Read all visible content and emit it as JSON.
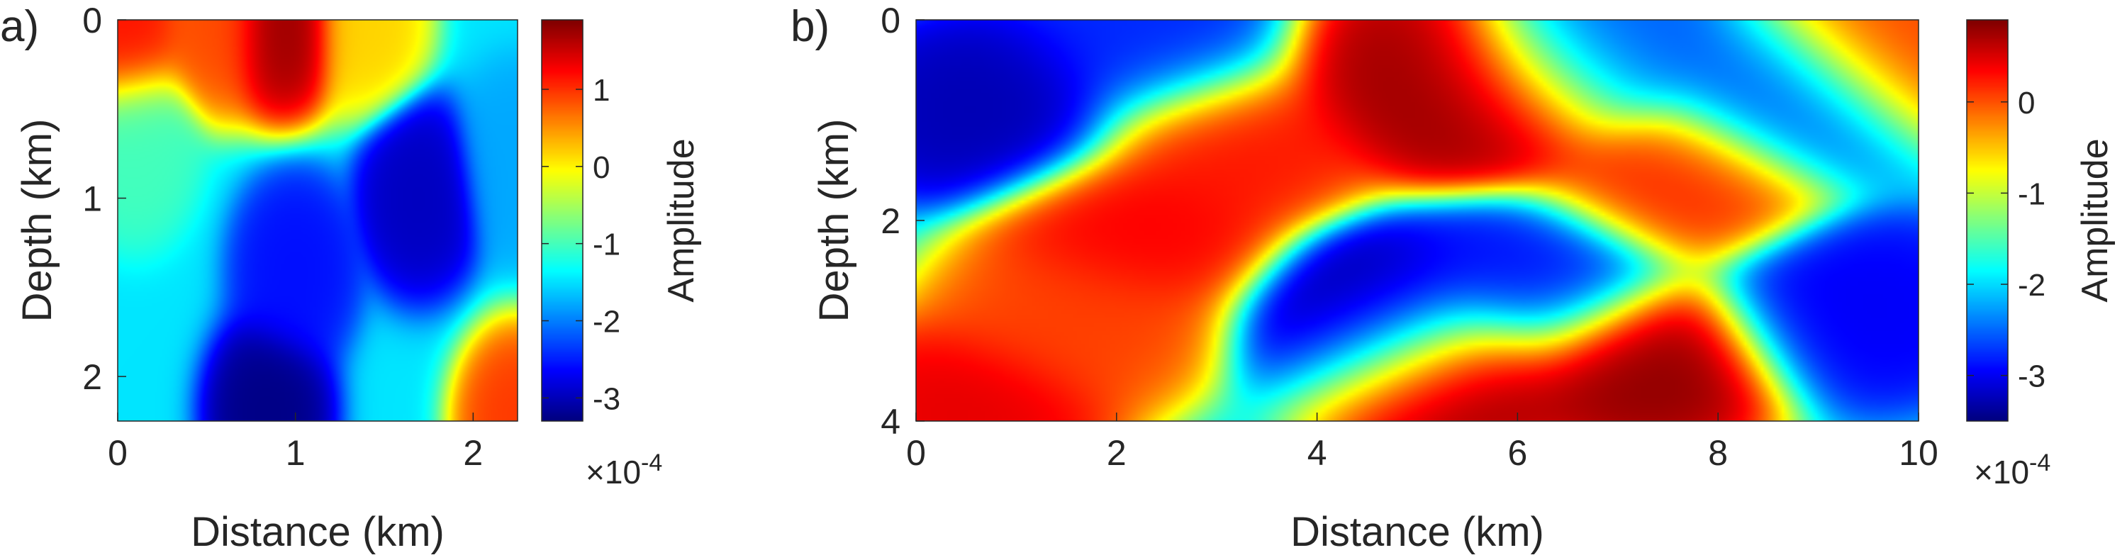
{
  "chart_data": [
    {
      "type": "heatmap",
      "panel_label": "a)",
      "xlabel": "Distance (km)",
      "ylabel": "Depth (km)",
      "xlim": [
        0,
        2.25
      ],
      "ylim": [
        0,
        2.25
      ],
      "y_reversed": true,
      "xticks": [
        0,
        1,
        2
      ],
      "yticks": [
        0,
        1,
        2
      ],
      "colorbar": {
        "label": "Amplitude",
        "exponent_label": "×10",
        "exponent_power": "-4",
        "range": [
          -3.3,
          1.9
        ],
        "ticks": [
          -3,
          -2,
          -1,
          0,
          1
        ],
        "colormap": "jet"
      },
      "features": [
        {
          "x": 0.93,
          "y": 0.02,
          "value": 1.8
        },
        {
          "x": 0.55,
          "y": 0.0,
          "value": 0.9
        },
        {
          "x": 0.05,
          "y": 0.05,
          "value": 1.2
        },
        {
          "x": 0.1,
          "y": 0.7,
          "value": -1.0
        },
        {
          "x": 0.85,
          "y": 2.2,
          "value": -3.3
        },
        {
          "x": 1.7,
          "y": 1.0,
          "value": -3.0
        },
        {
          "x": 1.0,
          "y": 1.4,
          "value": -2.6
        },
        {
          "x": 2.25,
          "y": 2.25,
          "value": 1.0
        },
        {
          "x": 1.4,
          "y": 0.0,
          "value": 0.2
        },
        {
          "x": 2.25,
          "y": 0.8,
          "value": -1.8
        }
      ]
    },
    {
      "type": "heatmap",
      "panel_label": "b)",
      "xlabel": "Distance (km)",
      "ylabel": "Depth (km)",
      "xlim": [
        0,
        10
      ],
      "ylim": [
        0,
        4
      ],
      "y_reversed": true,
      "xticks": [
        0,
        2,
        4,
        6,
        8,
        10
      ],
      "yticks": [
        0,
        2,
        4
      ],
      "colorbar": {
        "label": "Amplitude",
        "exponent_label": "×10",
        "exponent_power": "-4",
        "range": [
          -3.5,
          0.9
        ],
        "ticks": [
          -3,
          -2,
          -1,
          0
        ],
        "colormap": "jet"
      },
      "features": [
        {
          "x": 0.8,
          "y": 0.9,
          "value": -3.3
        },
        {
          "x": 2.4,
          "y": 0.3,
          "value": -2.8
        },
        {
          "x": 2.2,
          "y": 2.1,
          "value": 0.4
        },
        {
          "x": 3.1,
          "y": 1.2,
          "value": 0.3
        },
        {
          "x": 1.6,
          "y": 3.0,
          "value": 0.1
        },
        {
          "x": 0.5,
          "y": 3.9,
          "value": 0.5
        },
        {
          "x": 4.7,
          "y": 3.0,
          "value": -3.4
        },
        {
          "x": 5.3,
          "y": 3.5,
          "value": 0.9
        },
        {
          "x": 5.0,
          "y": 0.5,
          "value": 0.8
        },
        {
          "x": 5.8,
          "y": 0.8,
          "value": 0.9
        },
        {
          "x": 6.2,
          "y": 2.6,
          "value": -2.9
        },
        {
          "x": 6.6,
          "y": 0.4,
          "value": -2.6
        },
        {
          "x": 7.3,
          "y": 3.4,
          "value": 0.9
        },
        {
          "x": 7.6,
          "y": 1.6,
          "value": 0.2
        },
        {
          "x": 8.7,
          "y": 0.8,
          "value": -2.6
        },
        {
          "x": 9.3,
          "y": 2.9,
          "value": -3.0
        },
        {
          "x": 9.8,
          "y": 0.3,
          "value": 0.1
        }
      ]
    }
  ]
}
